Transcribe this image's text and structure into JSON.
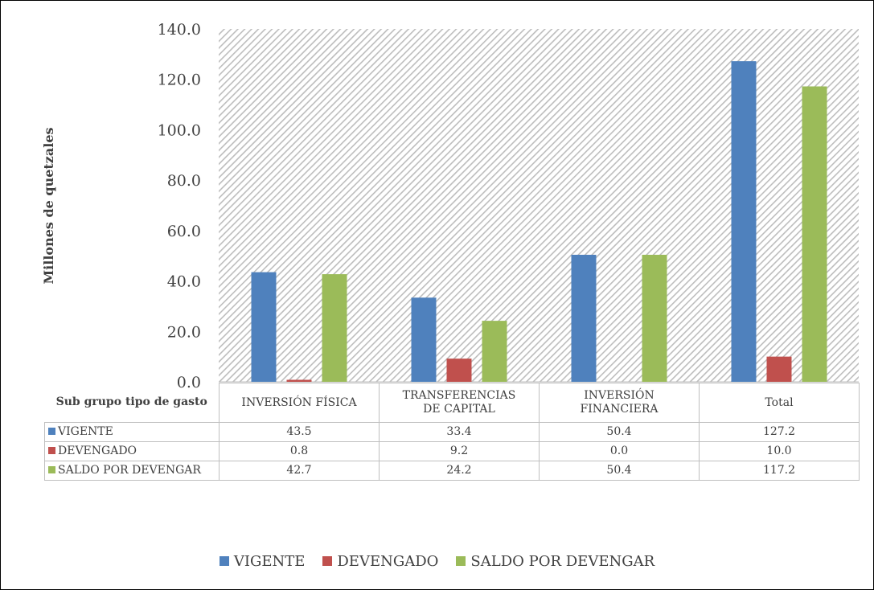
{
  "chart_data": {
    "type": "bar",
    "y_label": "Millones de quetzales",
    "table_header": "Sub grupo tipo de gasto",
    "categories": [
      "INVERSIÓN FÍSICA",
      "TRANSFERENCIAS\nDE CAPITAL",
      "INVERSIÓN\nFINANCIERA",
      "Total"
    ],
    "series": [
      {
        "name": "VIGENTE",
        "color": "#4f81bd",
        "values": [
          43.5,
          33.4,
          50.4,
          127.2
        ],
        "value_labels": [
          "43.5",
          "33.4",
          "50.4",
          "127.2"
        ]
      },
      {
        "name": "DEVENGADO",
        "color": "#c0504d",
        "values": [
          0.8,
          9.2,
          0.0,
          10.0
        ],
        "value_labels": [
          "0.8",
          "9.2",
          "0.0",
          "10.0"
        ]
      },
      {
        "name": "SALDO POR DEVENGAR",
        "color": "#9bbb59",
        "values": [
          42.7,
          24.2,
          50.4,
          117.2
        ],
        "value_labels": [
          "42.7",
          "24.2",
          "50.4",
          "117.2"
        ]
      }
    ],
    "ylim": [
      0,
      140
    ],
    "yticks": [
      {
        "value": 0,
        "label": "0.0"
      },
      {
        "value": 20,
        "label": "20.0"
      },
      {
        "value": 40,
        "label": "40.0"
      },
      {
        "value": 60,
        "label": "60.0"
      },
      {
        "value": 80,
        "label": "80.0"
      },
      {
        "value": 100,
        "label": "100.0"
      },
      {
        "value": 120,
        "label": "120.0"
      },
      {
        "value": 140,
        "label": "140.0"
      }
    ],
    "legend": "bottom"
  }
}
